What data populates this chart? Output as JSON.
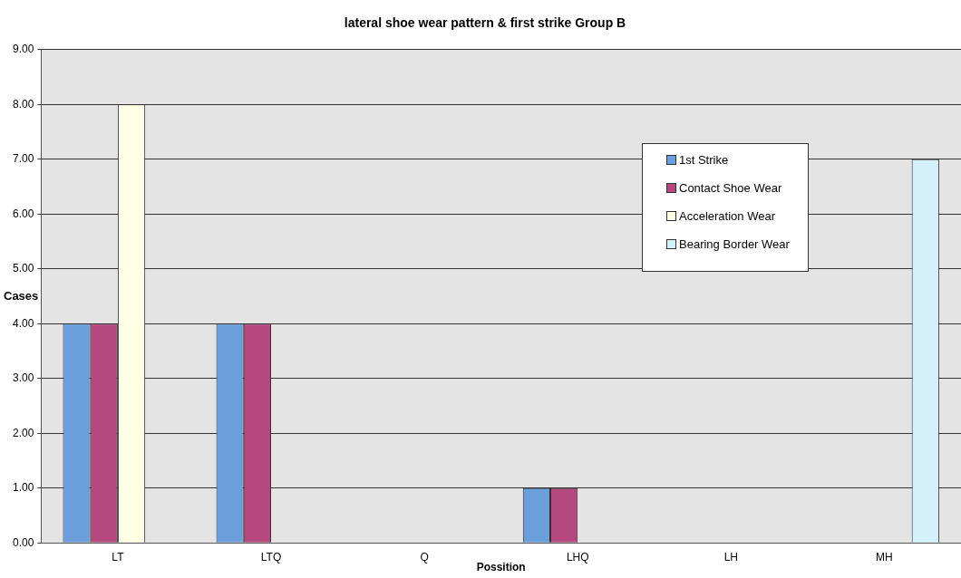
{
  "chart_data": {
    "type": "bar",
    "title": "lateral shoe wear pattern & first strike Group B",
    "xlabel": "Possition",
    "ylabel": "Cases",
    "categories": [
      "LT",
      "LTQ",
      "Q",
      "LHQ",
      "LH",
      "MH"
    ],
    "series": [
      {
        "name": "1st Strike",
        "color": "#6b9fdc",
        "values": [
          4,
          4,
          0,
          1,
          0,
          0
        ]
      },
      {
        "name": "Contact Shoe Wear",
        "color": "#b5487f",
        "values": [
          4,
          4,
          0,
          1,
          0,
          0
        ]
      },
      {
        "name": "Acceleration Wear",
        "color": "#ffffe6",
        "values": [
          8,
          0,
          0,
          0,
          0,
          0
        ]
      },
      {
        "name": "Bearing Border Wear",
        "color": "#d4f1fb",
        "values": [
          0,
          0,
          0,
          0,
          0,
          7
        ]
      }
    ],
    "ylim": [
      0,
      9
    ],
    "yticks": [
      {
        "value": 0,
        "label": "0.00"
      },
      {
        "value": 1,
        "label": "1.00"
      },
      {
        "value": 2,
        "label": "2.00"
      },
      {
        "value": 3,
        "label": "3.00"
      },
      {
        "value": 4,
        "label": "4.00"
      },
      {
        "value": 5,
        "label": "5.00"
      },
      {
        "value": 6,
        "label": "6.00"
      },
      {
        "value": 7,
        "label": "7.00"
      },
      {
        "value": 8,
        "label": "8.00"
      },
      {
        "value": 9,
        "label": "9.00"
      }
    ],
    "grid": "y",
    "legend": "top right"
  }
}
